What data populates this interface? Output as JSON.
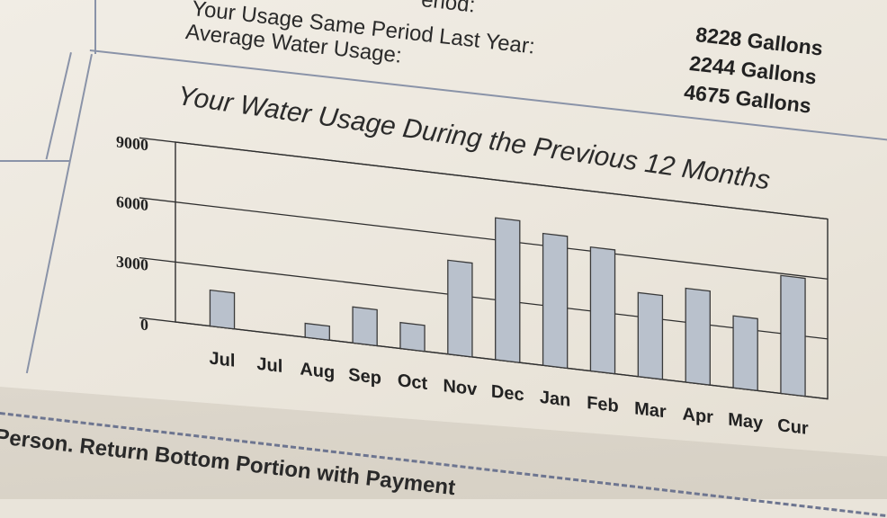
{
  "summary": {
    "prev_label_partial": "eriod:",
    "rows": [
      {
        "label": "Your Usage Same Period Last Year:",
        "value": "8228 Gallons"
      },
      {
        "label": "Average Water Usage:",
        "value": "2244 Gallons"
      },
      {
        "label": "",
        "value": "4675 Gallons"
      }
    ]
  },
  "chart_data": {
    "type": "bar",
    "title": "Your Water Usage During the Previous 12 Months",
    "categories": [
      "Jul",
      "Jul",
      "Aug",
      "Sep",
      "Oct",
      "Nov",
      "Dec",
      "Jan",
      "Feb",
      "Mar",
      "Apr",
      "May",
      "Cur"
    ],
    "values": [
      1800,
      0,
      700,
      1800,
      1300,
      4700,
      7100,
      6600,
      6200,
      4200,
      4700,
      3600,
      5900
    ],
    "yticks": [
      0,
      3000,
      6000,
      9000
    ],
    "ylim": [
      0,
      9000
    ],
    "grid": true,
    "colors": {
      "bar": "#b9c1cc",
      "bar_stroke": "#3a3a3a",
      "grid": "#2f2f2f"
    }
  },
  "footer": {
    "text": "Person.  Return Bottom Portion with Payment"
  }
}
